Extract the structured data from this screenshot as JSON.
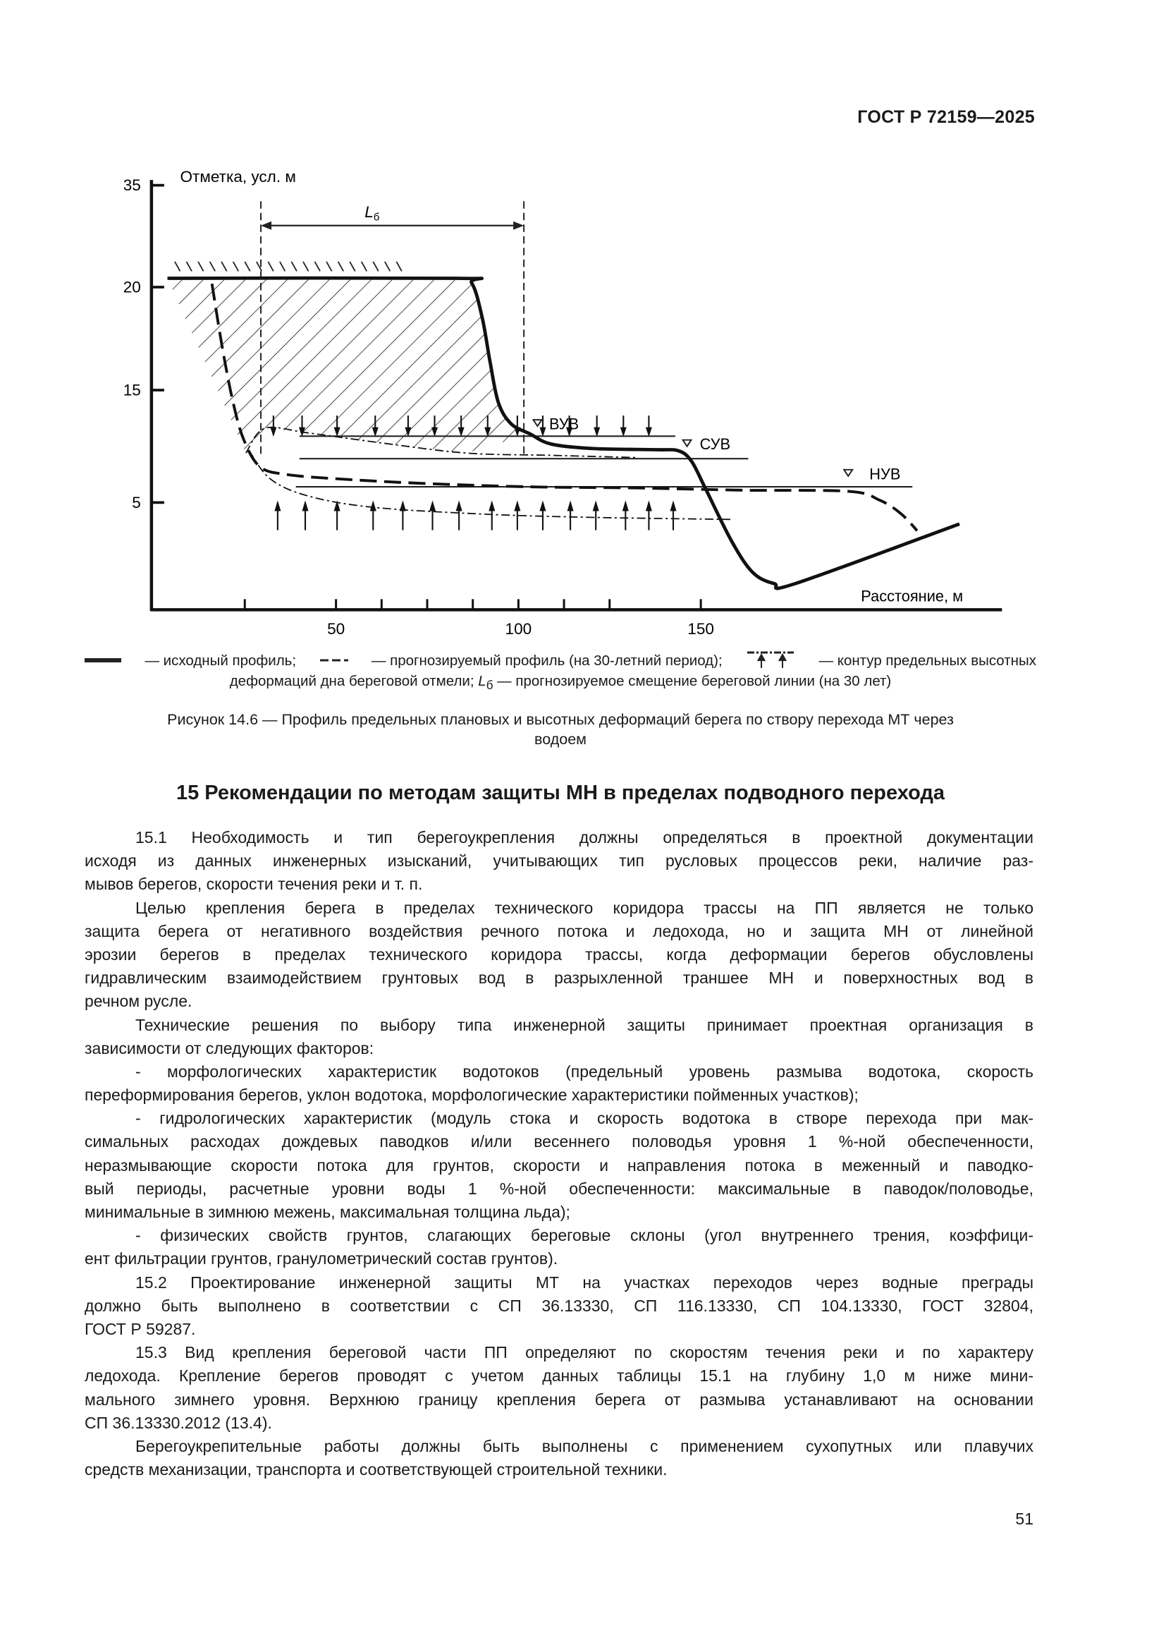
{
  "header": {
    "doc_code": "ГОСТ Р 72159—2025"
  },
  "figure": {
    "y_axis_label": "Отметка, усл. м",
    "x_axis_label": "Расстояние, м",
    "shift_label": "L",
    "shift_label_sub": "б",
    "level_labels": {
      "high": "ВУВ",
      "mid": "СУВ",
      "low": "НУВ"
    }
  },
  "chart_data": {
    "type": "line",
    "title": "",
    "xlabel": "Расстояние, м",
    "ylabel": "Отметка, усл. м",
    "x_ticks": [
      50,
      100,
      150
    ],
    "y_ticks": [
      35,
      20,
      15,
      5
    ],
    "grid": false,
    "series": [
      {
        "key": "initial",
        "style": "solid-thick",
        "points": [
          [
            3.8,
            21.3
          ],
          [
            82.8,
            21.3
          ],
          [
            87.2,
            20.6
          ],
          [
            90.1,
            18.5
          ],
          [
            92.2,
            16.4
          ],
          [
            94.5,
            13.9
          ],
          [
            98.0,
            12.0
          ],
          [
            103.2,
            11.1
          ],
          [
            109.0,
            10.2
          ],
          [
            120.6,
            9.8
          ],
          [
            138.1,
            9.7
          ],
          [
            143.9,
            9.6
          ],
          [
            147.4,
            8.7
          ],
          [
            151.2,
            6.3
          ],
          [
            158.4,
            1.6
          ],
          [
            164.2,
            -1.2
          ],
          [
            170.1,
            -2.2
          ],
          [
            175.9,
            -2.2
          ],
          [
            220.9,
            3.1
          ]
        ]
      },
      {
        "key": "forecast",
        "style": "dashed",
        "points": [
          [
            16.0,
            20.5
          ],
          [
            18.9,
            17.0
          ],
          [
            21.8,
            13.9
          ],
          [
            24.7,
            10.6
          ],
          [
            29.1,
            8.2
          ],
          [
            36.3,
            7.5
          ],
          [
            50.9,
            7.1
          ],
          [
            74.1,
            6.7
          ],
          [
            103.2,
            6.4
          ],
          [
            132.3,
            6.3
          ],
          [
            161.3,
            6.1
          ],
          [
            190.4,
            6.0
          ],
          [
            199.1,
            5.2
          ],
          [
            204.9,
            4.0
          ],
          [
            209.3,
            2.5
          ]
        ]
      },
      {
        "key": "upper_contour",
        "style": "dash-dot",
        "points": [
          [
            25.3,
            9.4
          ],
          [
            30.5,
            11.6
          ],
          [
            42.2,
            11.2
          ],
          [
            62.5,
            10.3
          ],
          [
            85.8,
            9.4
          ],
          [
            109.0,
            9.2
          ],
          [
            132.3,
            9.0
          ]
        ]
      },
      {
        "key": "lower_contour",
        "style": "dash-dot",
        "points": [
          [
            26.2,
            9.6
          ],
          [
            32.0,
            7.1
          ],
          [
            42.2,
            5.6
          ],
          [
            59.6,
            4.6
          ],
          [
            88.7,
            4.0
          ],
          [
            117.7,
            3.7
          ],
          [
            158.4,
            3.5
          ]
        ]
      }
    ],
    "water_levels": [
      {
        "label": "ВУВ",
        "y": 10.9,
        "x_range": [
          40,
          143
        ]
      },
      {
        "label": "СУВ",
        "y": 8.9,
        "x_range": [
          40,
          163
        ]
      },
      {
        "label": "НУВ",
        "y": 6.4,
        "x_range": [
          39,
          208
        ]
      }
    ],
    "shoreline_shift_x": [
      29.4,
      101.5
    ]
  },
  "legend": {
    "line1": "— исходный профиль;   — прогнозируемый профиль (на 30-летний период);   — контур предельных высотных",
    "item_initial": "— исходный профиль;",
    "item_forecast": "— прогнозируемый профиль (на 30-летний период);",
    "item_contour": "— контур предельных высотных",
    "line2_a": "деформаций дна береговой отмели; ",
    "line2_sym": "L",
    "line2_sub": "б",
    "line2_b": " — прогнозируемое смещение береговой линии (на 30 лет)"
  },
  "caption": {
    "line1": "Рисунок 14.6 — Профиль предельных плановых и высотных деформаций берега по створу перехода МТ через",
    "line2": "водоем"
  },
  "section": {
    "title": "15 Рекомендации по методам защиты МН в пределах подводного перехода"
  },
  "paragraphs": [
    [
      "15.1 Необходимость и тип берегоукрепления должны определяться в проектной документации",
      "исходя из данных инженерных изысканий, учитывающих тип русловых процессов реки, наличие раз-",
      "мывов берегов, скорости течения реки и т. п."
    ],
    [
      "Целью крепления берега в пределах технического коридора трассы на ПП является не только",
      "защита берега от негативного воздействия речного потока и ледохода, но и защита МН от линейной",
      "эрозии берегов в пределах технического коридора трассы, когда деформации берегов обусловлены",
      "гидравлическим взаимодействием грунтовых вод в разрыхленной траншее МН и поверхностных вод в",
      "речном русле."
    ],
    [
      "Технические решения по выбору типа инженерной защиты принимает проектная организация в",
      "зависимости от следующих факторов:"
    ],
    [
      "- морфологических характеристик водотоков (предельный уровень размыва водотока, скорость",
      "переформирования берегов, уклон водотока, морфологические характеристики пойменных участков);"
    ],
    [
      "- гидрологических характеристик (модуль стока и скорость водотока в створе перехода при мак-",
      "симальных расходах дождевых паводков и/или весеннего половодья уровня 1 %-ной обеспеченности,",
      "неразмывающие скорости потока для грунтов, скорости и направления потока в меженный и паводко-",
      "вый периоды, расчетные уровни воды 1 %-ной обеспеченности: максимальные в паводок/половодье,",
      "минимальные в зимнюю межень, максимальная толщина льда);"
    ],
    [
      "- физических свойств грунтов, слагающих береговые склоны (угол внутреннего трения, коэффици-",
      "ент фильтрации грунтов, гранулометрический состав грунтов)."
    ],
    [
      "15.2 Проектирование инженерной защиты МТ на участках переходов через водные преграды",
      "должно быть выполнено в соответствии с СП 36.13330, СП 116.13330, СП 104.13330, ГОСТ 32804,",
      "ГОСТ Р 59287."
    ],
    [
      "15.3 Вид крепления береговой части ПП определяют по скоростям течения реки и по характеру",
      "ледохода. Крепление берегов проводят с учетом данных таблицы 15.1 на глубину 1,0 м ниже мини-",
      "мального зимнего уровня. Верхнюю границу крепления берега от размыва устанавливают на основании",
      "СП 36.13330.2012 (13.4)."
    ],
    [
      "Берегоукрепительные работы должны быть выполнены с применением сухопутных или плавучих",
      "средств механизации, транспорта и соответствующей строительной техники."
    ]
  ],
  "page_number": "51"
}
